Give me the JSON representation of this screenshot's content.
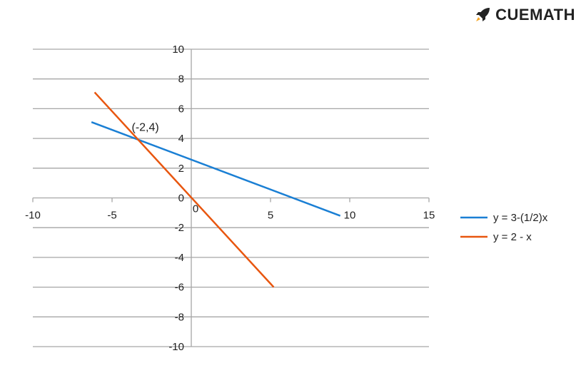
{
  "brand": {
    "name": "CUEMATH",
    "icon": "rocket-icon"
  },
  "chart_data": {
    "type": "line",
    "title": "",
    "xlabel": "",
    "ylabel": "",
    "xlim": [
      -10,
      15
    ],
    "ylim": [
      -10,
      10
    ],
    "x_ticks": [
      -10,
      -5,
      0,
      5,
      10,
      15
    ],
    "y_ticks": [
      -10,
      -8,
      -6,
      -4,
      -2,
      0,
      2,
      4,
      6,
      8,
      10
    ],
    "grid": "horizontal",
    "legend_position": "right",
    "series": [
      {
        "name": "y = 3-(1/2)x",
        "color": "#1a7fd4",
        "points": [
          [
            -6.3,
            5.1
          ],
          [
            9.4,
            -1.2
          ]
        ]
      },
      {
        "name": "y = 2 - x",
        "color": "#e8560f",
        "points": [
          [
            -6.1,
            7.1
          ],
          [
            5.2,
            -6.0
          ]
        ]
      }
    ],
    "annotations": [
      {
        "text": "(-2,4)",
        "x": -2.9,
        "y": 4.5
      }
    ]
  }
}
